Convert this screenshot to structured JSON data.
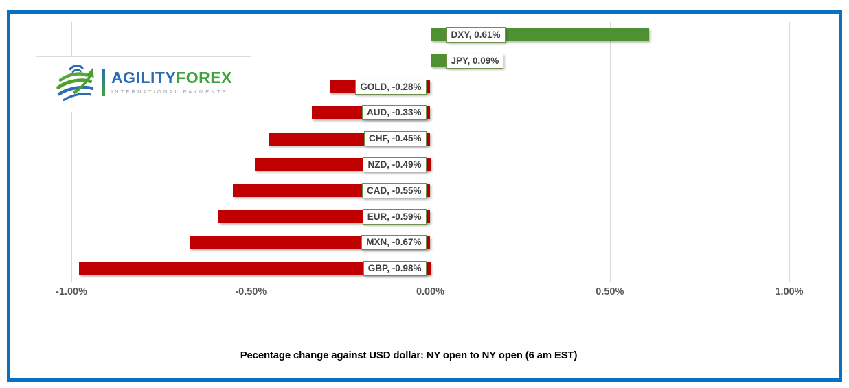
{
  "logo": {
    "brand_primary": "AGILITY",
    "brand_secondary": "FOREX",
    "tagline": "INTERNATIONAL PAYMENTS",
    "agility_color": "#2b6cb3",
    "forex_color": "#3ea33a",
    "tagline_color": "#9aa0a6"
  },
  "frame_border_color": "#0b70c2",
  "chart_data": {
    "type": "bar",
    "orientation": "horizontal",
    "title": "Pecentage change against USD dollar: NY open to NY open  (6 am EST)",
    "categories": [
      "DXY",
      "JPY",
      "GOLD",
      "AUD",
      "CHF",
      "NZD",
      "CAD",
      "EUR",
      "MXN",
      "GBP"
    ],
    "values": [
      0.61,
      0.09,
      -0.28,
      -0.33,
      -0.45,
      -0.49,
      -0.55,
      -0.59,
      -0.67,
      -0.98
    ],
    "data_labels": [
      "DXY, 0.61%",
      "JPY, 0.09%",
      "GOLD, -0.28%",
      "AUD, -0.33%",
      "CHF, -0.45%",
      "NZD, -0.49%",
      "CAD, -0.55%",
      "EUR, -0.59%",
      "MXN, -0.67%",
      "GBP, -0.98%"
    ],
    "x_ticks": [
      "-1.00%",
      "-0.50%",
      "0.00%",
      "0.50%",
      "1.00%"
    ],
    "x_tick_values": [
      -1,
      -0.5,
      0,
      0.5,
      1
    ],
    "xlim": [
      -1,
      1
    ],
    "grid": "vertical",
    "legend": "none",
    "colors": {
      "positive": "#4e9132",
      "negative": "#c00000",
      "label_border": "#6f8f4a",
      "label_text": "#404040",
      "gridline": "#d9d9d9",
      "axis_text": "#595959"
    }
  }
}
